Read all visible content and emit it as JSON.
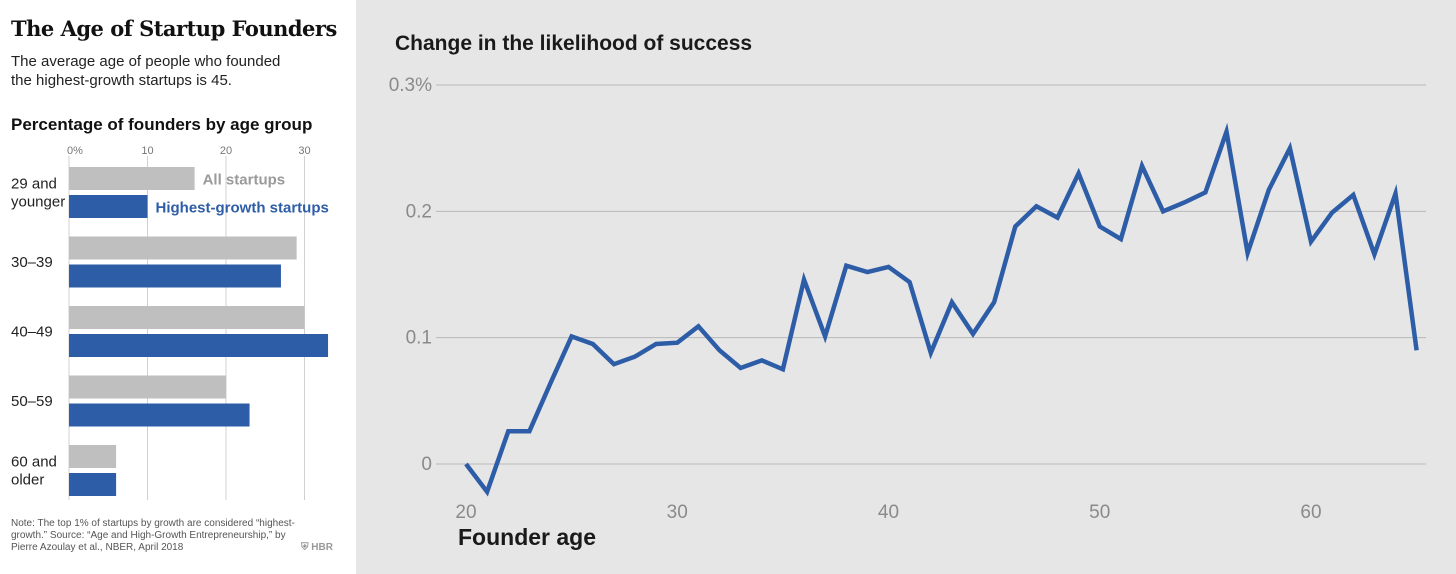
{
  "left": {
    "title": "The Age of Startup Founders",
    "subtitle_line1": "The average age of people who founded",
    "subtitle_line2": "the highest-growth startups is 45.",
    "note": "Note: The top 1% of startups by growth are considered “highest-growth.” Source: “Age and High-Growth Entrepreneurship,” by Pierre Azoulay et al., NBER, April 2018",
    "logo": "⛨ HBR"
  },
  "right": {
    "title": "Change in the likelihood of success"
  },
  "colors": {
    "gray": "#bfbfbf",
    "blue": "#2e5da8",
    "grid": "#b9b9b9",
    "tick": "#8a8a8a",
    "right_bg": "#e6e6e6"
  },
  "chart_data": [
    {
      "type": "bar",
      "orientation": "horizontal",
      "title": "Percentage of founders by age group",
      "categories": [
        [
          "29 and",
          "younger"
        ],
        [
          "30–39"
        ],
        [
          "40–49"
        ],
        [
          "50–59"
        ],
        [
          "60 and",
          "older"
        ]
      ],
      "series": [
        {
          "name": "All startups",
          "color": "#bfbfbf",
          "values": [
            16,
            29,
            30,
            20,
            6
          ]
        },
        {
          "name": "Highest-growth startups",
          "color": "#2e5da8",
          "values": [
            10,
            27,
            33,
            23,
            6
          ]
        }
      ],
      "xticks": [
        0,
        10,
        20,
        30
      ],
      "xtick_labels": [
        "0%",
        "10",
        "20",
        "30"
      ],
      "xlim": [
        0,
        33
      ],
      "legend_placement": "inline, beside first category bars",
      "grid": true
    },
    {
      "type": "line",
      "title": "Change in the likelihood of success",
      "xlabel": "Founder age",
      "ylabel": "",
      "x": [
        20,
        21,
        22,
        23,
        24,
        25,
        26,
        27,
        28,
        29,
        30,
        31,
        32,
        33,
        34,
        35,
        36,
        37,
        38,
        39,
        40,
        41,
        42,
        43,
        44,
        45,
        46,
        47,
        48,
        49,
        50,
        51,
        52,
        53,
        54,
        55,
        56,
        57,
        58,
        59,
        60,
        61,
        62,
        63,
        64,
        65
      ],
      "series": [
        {
          "color": "#2e5da8",
          "values": [
            0.0,
            -0.022,
            0.026,
            0.026,
            0.064,
            0.101,
            0.095,
            0.079,
            0.085,
            0.095,
            0.096,
            0.109,
            0.09,
            0.076,
            0.082,
            0.075,
            0.146,
            0.101,
            0.157,
            0.152,
            0.156,
            0.144,
            0.088,
            0.128,
            0.103,
            0.128,
            0.188,
            0.204,
            0.195,
            0.23,
            0.188,
            0.178,
            0.236,
            0.2,
            0.207,
            0.215,
            0.263,
            0.167,
            0.217,
            0.25,
            0.176,
            0.199,
            0.213,
            0.166,
            0.214,
            0.09
          ]
        }
      ],
      "xticks": [
        20,
        30,
        40,
        50,
        60
      ],
      "yticks": [
        0,
        0.1,
        0.2,
        0.3
      ],
      "ytick_labels": [
        "0",
        "0.1",
        "0.2",
        "0.3%"
      ],
      "xlim": [
        19.5,
        66
      ],
      "ylim": [
        -0.03,
        0.3
      ],
      "grid": true
    }
  ]
}
